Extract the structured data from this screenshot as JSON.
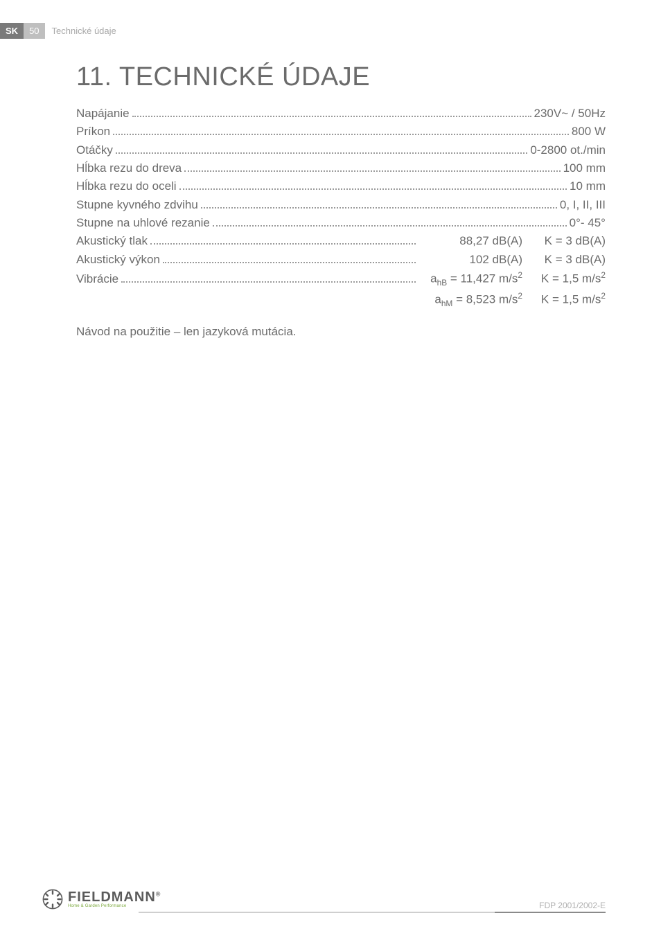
{
  "header": {
    "lang": "SK",
    "page": "50",
    "section": "Technické údaje"
  },
  "title": "11. TECHNICKÉ ÚDAJE",
  "specs": [
    {
      "label": "Napájanie",
      "value": "230V~ / 50Hz"
    },
    {
      "label": "Príkon",
      "value": "800 W"
    },
    {
      "label": "Otáčky",
      "value": "0-2800   ot./min"
    },
    {
      "label": "Hĺbka rezu do dreva",
      "value": "100 mm"
    },
    {
      "label": "Hĺbka   rezu   do   oceli",
      "value": "10   mm"
    },
    {
      "label": "Stupne   kyvného   zdvihu",
      "value": "0,  I,  II,  III"
    },
    {
      "label": "Stupne   na   uhlové   rezanie",
      "value": "0°-  45°"
    },
    {
      "label": "Akustický tlak",
      "col1": "88,27 dB(A)",
      "col2": "K = 3 dB(A)"
    },
    {
      "label": "Akustický výkon",
      "col1": "102 dB(A)",
      "col2": "K = 3 dB(A)"
    },
    {
      "label": "Vibrácie",
      "col1_html": "a<sub>hB</sub> = 11,427 m/s<sup>2</sup>",
      "col2_html": "K = 1,5 m/s<sup>2</sup>"
    }
  ],
  "extra_row": {
    "col1_html": "a<sub>hM</sub> = 8,523 m/s<sup>2</sup>",
    "col2_html": "K = 1,5 m/s<sup>2</sup>"
  },
  "note": "Návod na použitie – len jazyková mutácia.",
  "footer": {
    "brand": "FIELDMANN",
    "tagline": "Home & Garden Performance",
    "code": "FDP 2001/2002-E"
  },
  "colors": {
    "text": "#6b6b6b",
    "header_dark": "#7a7a7a",
    "header_mid": "#bfbfbf",
    "header_light": "#a8a8a8",
    "dots": "#9a9a9a",
    "logo_green": "#7aa83a",
    "footer_code": "#b0b0b0"
  }
}
